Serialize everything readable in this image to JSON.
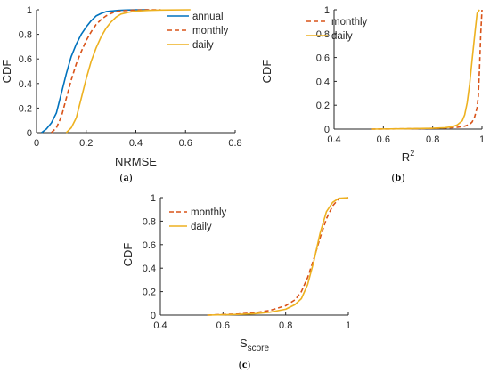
{
  "chart_data": [
    {
      "type": "line",
      "panel": "(a)",
      "panel_letter": "a",
      "xlabel": "NRMSE",
      "ylabel": "CDF",
      "xlim": [
        0,
        0.8
      ],
      "ylim": [
        0,
        1
      ],
      "x_ticks": [
        "0",
        "0.2",
        "0.4",
        "0.6",
        "0.8"
      ],
      "y_ticks": [
        "0",
        "0.2",
        "0.4",
        "0.6",
        "0.8",
        "1"
      ],
      "grid": false,
      "legend_position": "top-right",
      "series": [
        {
          "name": "annual",
          "color": "#0072BD",
          "style": "solid",
          "x": [
            0.02,
            0.04,
            0.06,
            0.08,
            0.1,
            0.12,
            0.14,
            0.16,
            0.18,
            0.2,
            0.22,
            0.24,
            0.26,
            0.28,
            0.3,
            0.33,
            0.36,
            0.4,
            0.45
          ],
          "y": [
            0.0,
            0.03,
            0.08,
            0.16,
            0.32,
            0.48,
            0.62,
            0.72,
            0.8,
            0.86,
            0.91,
            0.95,
            0.97,
            0.985,
            0.99,
            0.995,
            0.998,
            1.0,
            1.0
          ]
        },
        {
          "name": "monthly",
          "color": "#D95319",
          "style": "dashed",
          "x": [
            0.06,
            0.08,
            0.1,
            0.12,
            0.14,
            0.16,
            0.18,
            0.2,
            0.22,
            0.24,
            0.26,
            0.28,
            0.3,
            0.32,
            0.35,
            0.4,
            0.45,
            0.5
          ],
          "y": [
            0.0,
            0.04,
            0.13,
            0.28,
            0.43,
            0.56,
            0.66,
            0.75,
            0.82,
            0.88,
            0.92,
            0.95,
            0.97,
            0.985,
            0.993,
            0.998,
            1.0,
            1.0
          ]
        },
        {
          "name": "daily",
          "color": "#EDB120",
          "style": "solid",
          "x": [
            0.12,
            0.14,
            0.16,
            0.18,
            0.2,
            0.22,
            0.24,
            0.26,
            0.28,
            0.3,
            0.32,
            0.34,
            0.37,
            0.4,
            0.45,
            0.5,
            0.62
          ],
          "y": [
            0.0,
            0.04,
            0.12,
            0.28,
            0.44,
            0.58,
            0.69,
            0.78,
            0.85,
            0.9,
            0.94,
            0.965,
            0.98,
            0.99,
            0.995,
            0.998,
            1.0
          ]
        }
      ]
    },
    {
      "type": "line",
      "panel": "(b)",
      "panel_letter": "b",
      "xlabel": "R",
      "xlabel_sup": "2",
      "ylabel": "CDF",
      "xlim": [
        0.4,
        1
      ],
      "ylim": [
        0,
        1
      ],
      "x_ticks": [
        "0.4",
        "0.6",
        "0.8",
        "1"
      ],
      "y_ticks": [
        "0",
        "0.2",
        "0.4",
        "0.6",
        "0.8",
        "1"
      ],
      "grid": false,
      "legend_position": "top-left",
      "series": [
        {
          "name": "monthly",
          "color": "#D95319",
          "style": "dashed",
          "x": [
            0.55,
            0.7,
            0.8,
            0.86,
            0.9,
            0.93,
            0.95,
            0.96,
            0.97,
            0.98,
            0.985,
            0.99,
            0.995,
            1.0
          ],
          "y": [
            0.0,
            0.003,
            0.006,
            0.01,
            0.015,
            0.025,
            0.04,
            0.06,
            0.1,
            0.18,
            0.28,
            0.5,
            0.8,
            1.0
          ]
        },
        {
          "name": "daily",
          "color": "#EDB120",
          "style": "solid",
          "x": [
            0.55,
            0.7,
            0.8,
            0.85,
            0.88,
            0.9,
            0.92,
            0.93,
            0.94,
            0.95,
            0.96,
            0.97,
            0.98,
            0.99
          ],
          "y": [
            0.0,
            0.003,
            0.007,
            0.012,
            0.02,
            0.035,
            0.07,
            0.12,
            0.22,
            0.38,
            0.58,
            0.78,
            0.97,
            1.0
          ]
        }
      ]
    },
    {
      "type": "line",
      "panel": "(c)",
      "panel_letter": "c",
      "xlabel": "S",
      "xlabel_sub": "score",
      "ylabel": "CDF",
      "xlim": [
        0.4,
        1
      ],
      "ylim": [
        0,
        1
      ],
      "x_ticks": [
        "0.4",
        "0.6",
        "0.8",
        "1"
      ],
      "y_ticks": [
        "0",
        "0.2",
        "0.4",
        "0.6",
        "0.8",
        "1"
      ],
      "grid": false,
      "legend_position": "top-left",
      "series": [
        {
          "name": "monthly",
          "color": "#D95319",
          "style": "dashed",
          "x": [
            0.55,
            0.6,
            0.65,
            0.7,
            0.75,
            0.8,
            0.83,
            0.85,
            0.87,
            0.89,
            0.91,
            0.93,
            0.95,
            0.97,
            1.0
          ],
          "y": [
            0.0,
            0.005,
            0.01,
            0.02,
            0.04,
            0.08,
            0.13,
            0.2,
            0.32,
            0.48,
            0.66,
            0.82,
            0.93,
            0.99,
            1.0
          ]
        },
        {
          "name": "daily",
          "color": "#EDB120",
          "style": "solid",
          "x": [
            0.55,
            0.6,
            0.65,
            0.7,
            0.75,
            0.8,
            0.83,
            0.85,
            0.87,
            0.89,
            0.91,
            0.93,
            0.95,
            0.97,
            1.0
          ],
          "y": [
            0.0,
            0.003,
            0.006,
            0.012,
            0.025,
            0.05,
            0.09,
            0.14,
            0.26,
            0.46,
            0.7,
            0.88,
            0.96,
            0.995,
            1.0
          ]
        }
      ]
    }
  ]
}
